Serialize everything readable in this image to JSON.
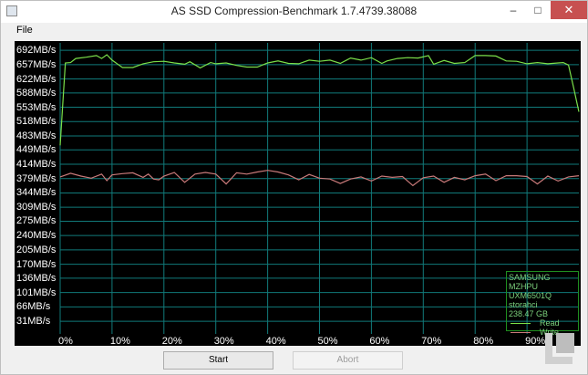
{
  "window": {
    "title": "AS SSD Compression-Benchmark 1.7.4739.38088"
  },
  "titlebar_controls": {
    "minimize": "–",
    "maximize": "□",
    "close": "✕"
  },
  "menu": {
    "file": "File"
  },
  "buttons": {
    "start": "Start",
    "abort": "Abort"
  },
  "legend": {
    "device_lines": [
      "SAMSUNG MZHPU",
      "UXM6501Q",
      "storahci",
      "238.47 GB"
    ],
    "read": "Read",
    "write": "Write"
  },
  "colors": {
    "read": "#7be04a",
    "write": "#c97a7a",
    "grid": "#117a7a",
    "background": "#000000",
    "label": "#ffffff"
  },
  "chart_data": {
    "type": "line",
    "y_ticks": [
      "692MB/s",
      "657MB/s",
      "622MB/s",
      "588MB/s",
      "553MB/s",
      "518MB/s",
      "483MB/s",
      "449MB/s",
      "414MB/s",
      "379MB/s",
      "344MB/s",
      "309MB/s",
      "275MB/s",
      "240MB/s",
      "205MB/s",
      "170MB/s",
      "136MB/s",
      "101MB/s",
      "66MB/s",
      "31MB/s"
    ],
    "x_ticks": [
      "0%",
      "10%",
      "20%",
      "30%",
      "40%",
      "50%",
      "60%",
      "70%",
      "80%",
      "90%"
    ],
    "xlim": [
      0,
      100
    ],
    "ylim": [
      0,
      710
    ],
    "grid": true,
    "series": [
      {
        "name": "Read",
        "x": [
          0,
          1,
          2,
          3,
          5,
          7,
          8,
          9,
          10,
          12,
          14,
          16,
          18,
          20,
          22,
          24,
          25,
          27,
          29,
          30,
          32,
          34,
          36,
          38,
          40,
          42,
          44,
          46,
          48,
          50,
          52,
          54,
          56,
          58,
          60,
          62,
          63,
          65,
          67,
          69,
          71,
          72,
          74,
          76,
          78,
          80,
          82,
          84,
          86,
          88,
          90,
          92,
          94,
          96,
          97,
          98,
          99,
          100
        ],
        "y": [
          460,
          661,
          662,
          672,
          675,
          679,
          672,
          681,
          668,
          650,
          650,
          659,
          664,
          665,
          661,
          658,
          664,
          649,
          662,
          659,
          661,
          655,
          651,
          651,
          661,
          666,
          660,
          659,
          668,
          665,
          668,
          660,
          673,
          668,
          674,
          660,
          666,
          672,
          674,
          673,
          679,
          658,
          667,
          660,
          662,
          679,
          679,
          678,
          666,
          665,
          659,
          662,
          659,
          661,
          662,
          656,
          600,
          542
        ]
      },
      {
        "name": "Write",
        "x": [
          0,
          2,
          4,
          6,
          8,
          9,
          10,
          12,
          14,
          16,
          17,
          18,
          19,
          20,
          22,
          24,
          26,
          28,
          30,
          32,
          34,
          36,
          38,
          40,
          42,
          44,
          46,
          48,
          50,
          52,
          54,
          56,
          58,
          60,
          62,
          64,
          66,
          68,
          70,
          72,
          74,
          76,
          78,
          80,
          82,
          84,
          86,
          88,
          90,
          92,
          94,
          96,
          98,
          100
        ],
        "y": [
          383,
          392,
          385,
          380,
          390,
          374,
          388,
          391,
          393,
          382,
          390,
          378,
          376,
          385,
          394,
          370,
          390,
          394,
          390,
          366,
          393,
          390,
          395,
          399,
          395,
          388,
          376,
          389,
          380,
          378,
          367,
          378,
          383,
          373,
          385,
          382,
          384,
          362,
          381,
          385,
          370,
          382,
          376,
          386,
          390,
          374,
          386,
          386,
          384,
          366,
          385,
          373,
          383,
          386
        ]
      }
    ]
  }
}
